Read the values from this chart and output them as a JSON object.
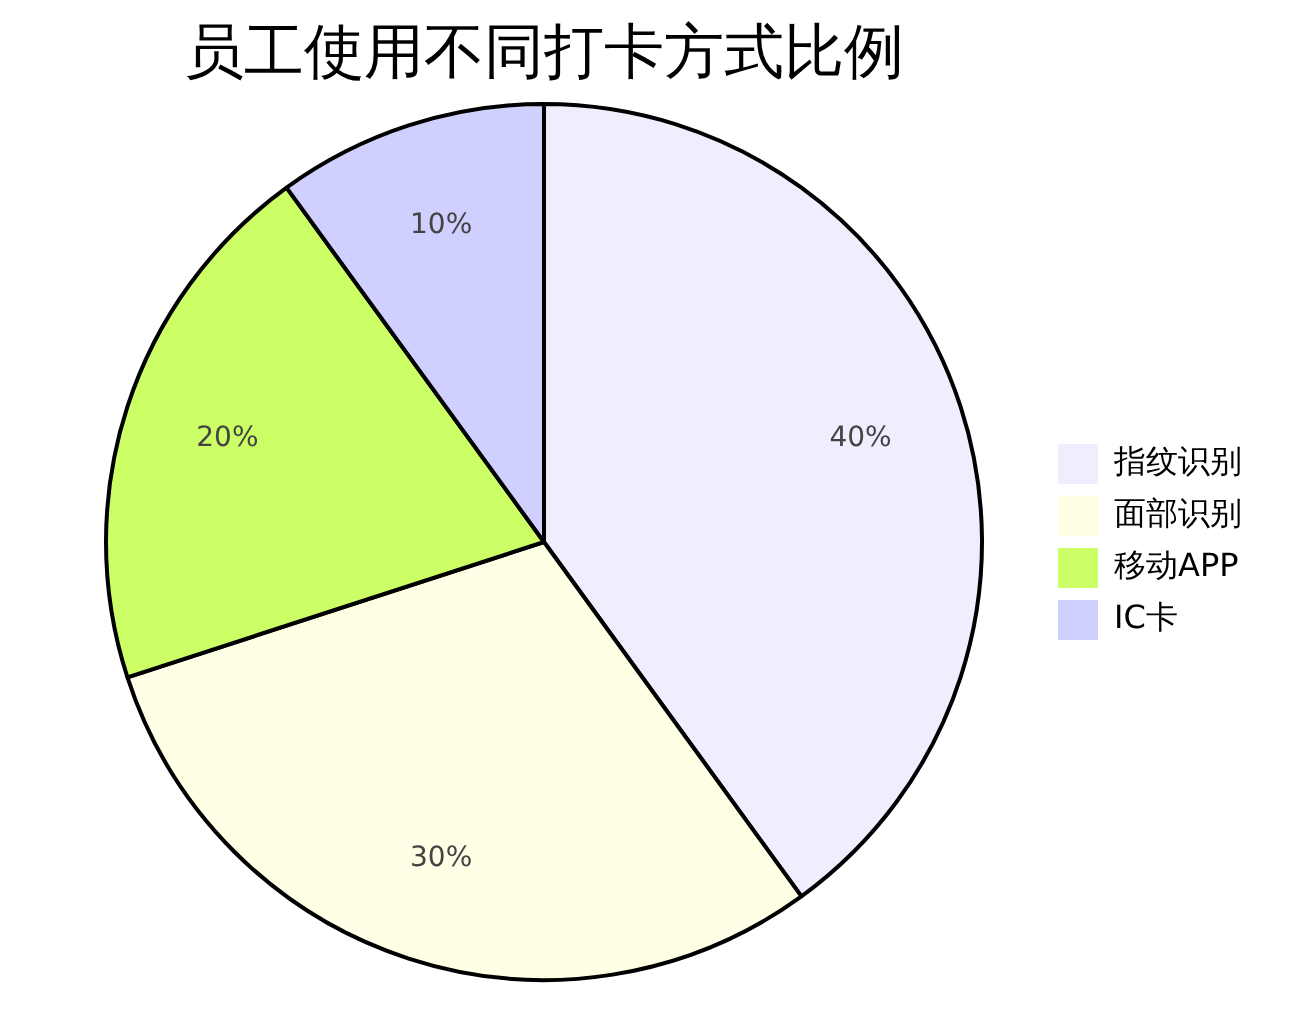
{
  "chart_data": {
    "type": "pie",
    "title": "员工使用不同打卡方式比例",
    "categories": [
      "指纹识别",
      "面部识别",
      "移动APP",
      "IC卡"
    ],
    "values": [
      40,
      30,
      20,
      10
    ],
    "value_labels": [
      "40%",
      "30%",
      "20%",
      "10%"
    ],
    "colors": [
      "#eeeeff",
      "#ffffe6",
      "#ccff66",
      "#d0d0ff"
    ],
    "legend": "right"
  }
}
